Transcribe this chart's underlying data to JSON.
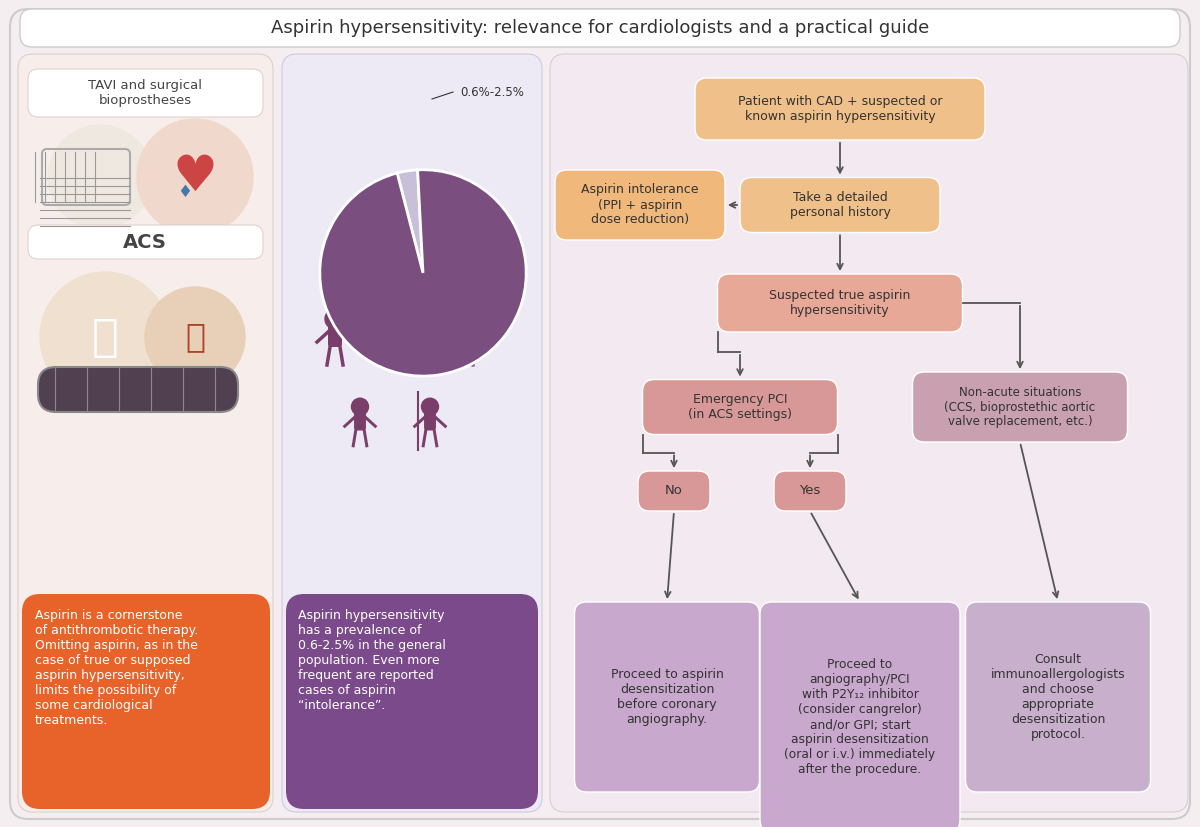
{
  "title": "Aspirin hypersensitivity: relevance for cardiologists and a practical guide",
  "title_fontsize": 13,
  "bg_color": "#f5eef0",
  "left_panel_label1": "TAVI and surgical\nbioprostheses",
  "left_panel_label2": "ACS",
  "left_box_text": "Aspirin is a cornerstone\nof antithrombotic therapy.\nOmitting aspirin, as in the\ncase of true or supposed\naspirin hypersensitivity,\nlimits the possibility of\nsome cardiological\ntreatments.",
  "left_box_color": "#E8632A",
  "pie_label": "0.6%-2.5%",
  "pie_big_color": "#7A4E7E",
  "pie_small_color": "#C8B8D8",
  "pie_slice_pct": 0.032,
  "mid_box_text": "Aspirin hypersensitivity\nhas a prevalence of\n0.6-2.5% in the general\npopulation. Even more\nfrequent are reported\ncases of aspirin\n“intolerance”.",
  "mid_box_color": "#7B4A8A",
  "box_patient": "Patient with CAD + suspected or\nknown aspirin hypersensitivity",
  "box_patient_color": "#F0C08A",
  "box_history": "Take a detailed\npersonal history",
  "box_history_color": "#F0C08A",
  "box_intolerance": "Aspirin intolerance\n(PPI + aspirin\ndose reduction)",
  "box_intolerance_color": "#F0B87A",
  "box_suspected": "Suspected true aspirin\nhypersensitivity",
  "box_suspected_color": "#E8A898",
  "box_emergency": "Emergency PCI\n(in ACS settings)",
  "box_emergency_color": "#D89898",
  "box_no": "No",
  "box_no_color": "#D89898",
  "box_yes": "Yes",
  "box_yes_color": "#D89898",
  "box_nonacute": "Non-acute situations\n(CCS, bioprostethic aortic\nvalve replacement, etc.)",
  "box_nonacute_color": "#C8A0B0",
  "box_proceed_no": "Proceed to aspirin\ndesensitization\nbefore coronary\nangiography.",
  "box_proceed_no_color": "#C8A8CC",
  "box_proceed_yes": "Proceed to\nangiography/PCI\nwith P2Y₁₂ inhibitor\n(consider cangrelor)\nand/or GPI; start\naspirin desensitization\n(oral or i.v.) immediately\nafter the procedure.",
  "box_proceed_yes_color": "#C8A8CC",
  "box_consult": "Consult\nimmunoallergologists\nand choose\nappropriate\ndesensitization\nprotocol.",
  "box_consult_color": "#C8B0CC",
  "arrow_color": "#555555",
  "text_color_dark": "#333333",
  "text_color_white": "#ffffff",
  "panel_left_bg": "#f7eeec",
  "panel_mid_bg": "#eeeaf5",
  "panel_right_bg": "#f2eaf0"
}
